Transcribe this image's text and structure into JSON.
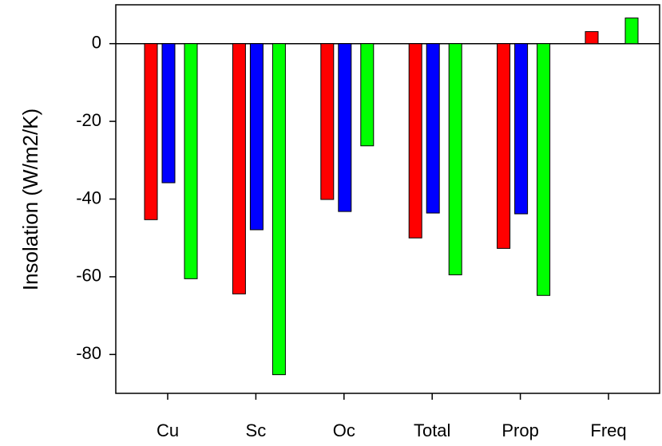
{
  "chart_data": {
    "type": "bar",
    "y_label": "Insolation (W/m2/K)",
    "categories": [
      "Cu",
      "Sc",
      "Oc",
      "Total",
      "Prop",
      "Freq"
    ],
    "series": [
      {
        "color": "#ff0000",
        "values": [
          -45.3,
          -64.4,
          -40.1,
          -50,
          -52.7,
          3.1
        ]
      },
      {
        "color": "#0000ff",
        "values": [
          -35.8,
          -47.9,
          -43.2,
          -43.6,
          -43.8,
          0
        ]
      },
      {
        "color": "#00ff00",
        "values": [
          -60.5,
          -85.2,
          -26.3,
          -59.5,
          -64.8,
          6.6
        ]
      }
    ],
    "ylim": [
      -90,
      10
    ],
    "yticks": [
      0,
      -20,
      -40,
      -60,
      -80
    ],
    "zero_line": true
  }
}
